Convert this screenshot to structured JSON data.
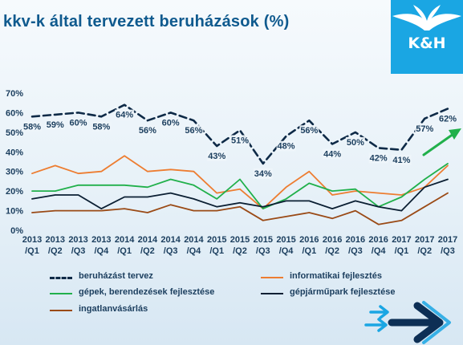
{
  "title": "kkv-k által tervezett beruházások (%)",
  "logo": {
    "text": "K&H",
    "color": "#1aa6e3"
  },
  "chart_data": {
    "type": "line",
    "title": "kkv-k által tervezett beruházások (%)",
    "x_labels": [
      [
        "2013",
        "/Q1"
      ],
      [
        "2013",
        "/Q2"
      ],
      [
        "2013",
        "/Q3"
      ],
      [
        "2013",
        "/Q4"
      ],
      [
        "2014",
        "/Q1"
      ],
      [
        "2014",
        "/Q2"
      ],
      [
        "2014",
        "/Q3"
      ],
      [
        "2014",
        "/Q4"
      ],
      [
        "2015",
        "/Q1"
      ],
      [
        "2015",
        "/Q2"
      ],
      [
        "2015",
        "/Q3"
      ],
      [
        "2015",
        "/Q4"
      ],
      [
        "2016",
        "/Q1"
      ],
      [
        "2016",
        "/Q2"
      ],
      [
        "2016",
        "/Q3"
      ],
      [
        "2016",
        "/Q4"
      ],
      [
        "2017",
        "/Q1"
      ],
      [
        "2017",
        "/Q2"
      ],
      [
        "2017",
        "/Q3"
      ]
    ],
    "y_ticks": [
      "0%",
      "10%",
      "20%",
      "30%",
      "40%",
      "50%",
      "60%",
      "70%"
    ],
    "ylim": [
      0,
      70
    ],
    "grid": false,
    "legend_position": "bottom",
    "series": [
      {
        "name": "beruházást tervez",
        "color": "#0e2a47",
        "dashed": true,
        "values": [
          58,
          59,
          60,
          58,
          64,
          56,
          60,
          56,
          43,
          51,
          34,
          48,
          56,
          44,
          50,
          42,
          41,
          57,
          62
        ],
        "data_labels": [
          "58%",
          "59%",
          "60%",
          "58%",
          "64%",
          "56%",
          "60%",
          "56%",
          "43%",
          "51%",
          "34%",
          "48%",
          "56%",
          "44%",
          "50%",
          "42%",
          "41%",
          "57%",
          "62%"
        ]
      },
      {
        "name": "informatikai fejlesztés",
        "color": "#ed7d31",
        "dashed": false,
        "values": [
          29,
          33,
          29,
          30,
          38,
          30,
          31,
          30,
          19,
          21,
          11,
          22,
          30,
          18,
          20,
          19,
          18,
          22,
          33
        ]
      },
      {
        "name": "gépek, berendezések fejlesztése",
        "color": "#21b04b",
        "dashed": false,
        "values": [
          20,
          20,
          23,
          23,
          23,
          22,
          26,
          23,
          16,
          26,
          11,
          16,
          24,
          20,
          21,
          12,
          17,
          26,
          34
        ]
      },
      {
        "name": "gépjárműpark fejlesztése",
        "color": "#0b1f33",
        "dashed": false,
        "values": [
          16,
          18,
          18,
          11,
          17,
          17,
          19,
          16,
          12,
          14,
          12,
          15,
          15,
          11,
          15,
          12,
          10,
          22,
          26
        ]
      },
      {
        "name": "ingatlanvásárlás",
        "color": "#9a4a16",
        "dashed": false,
        "values": [
          9,
          10,
          10,
          10,
          11,
          9,
          13,
          10,
          10,
          12,
          5,
          7,
          9,
          6,
          10,
          3,
          5,
          12,
          19
        ]
      }
    ],
    "annotations": [
      {
        "type": "arrow",
        "color": "#21b04b",
        "direction": "up-right"
      }
    ]
  }
}
